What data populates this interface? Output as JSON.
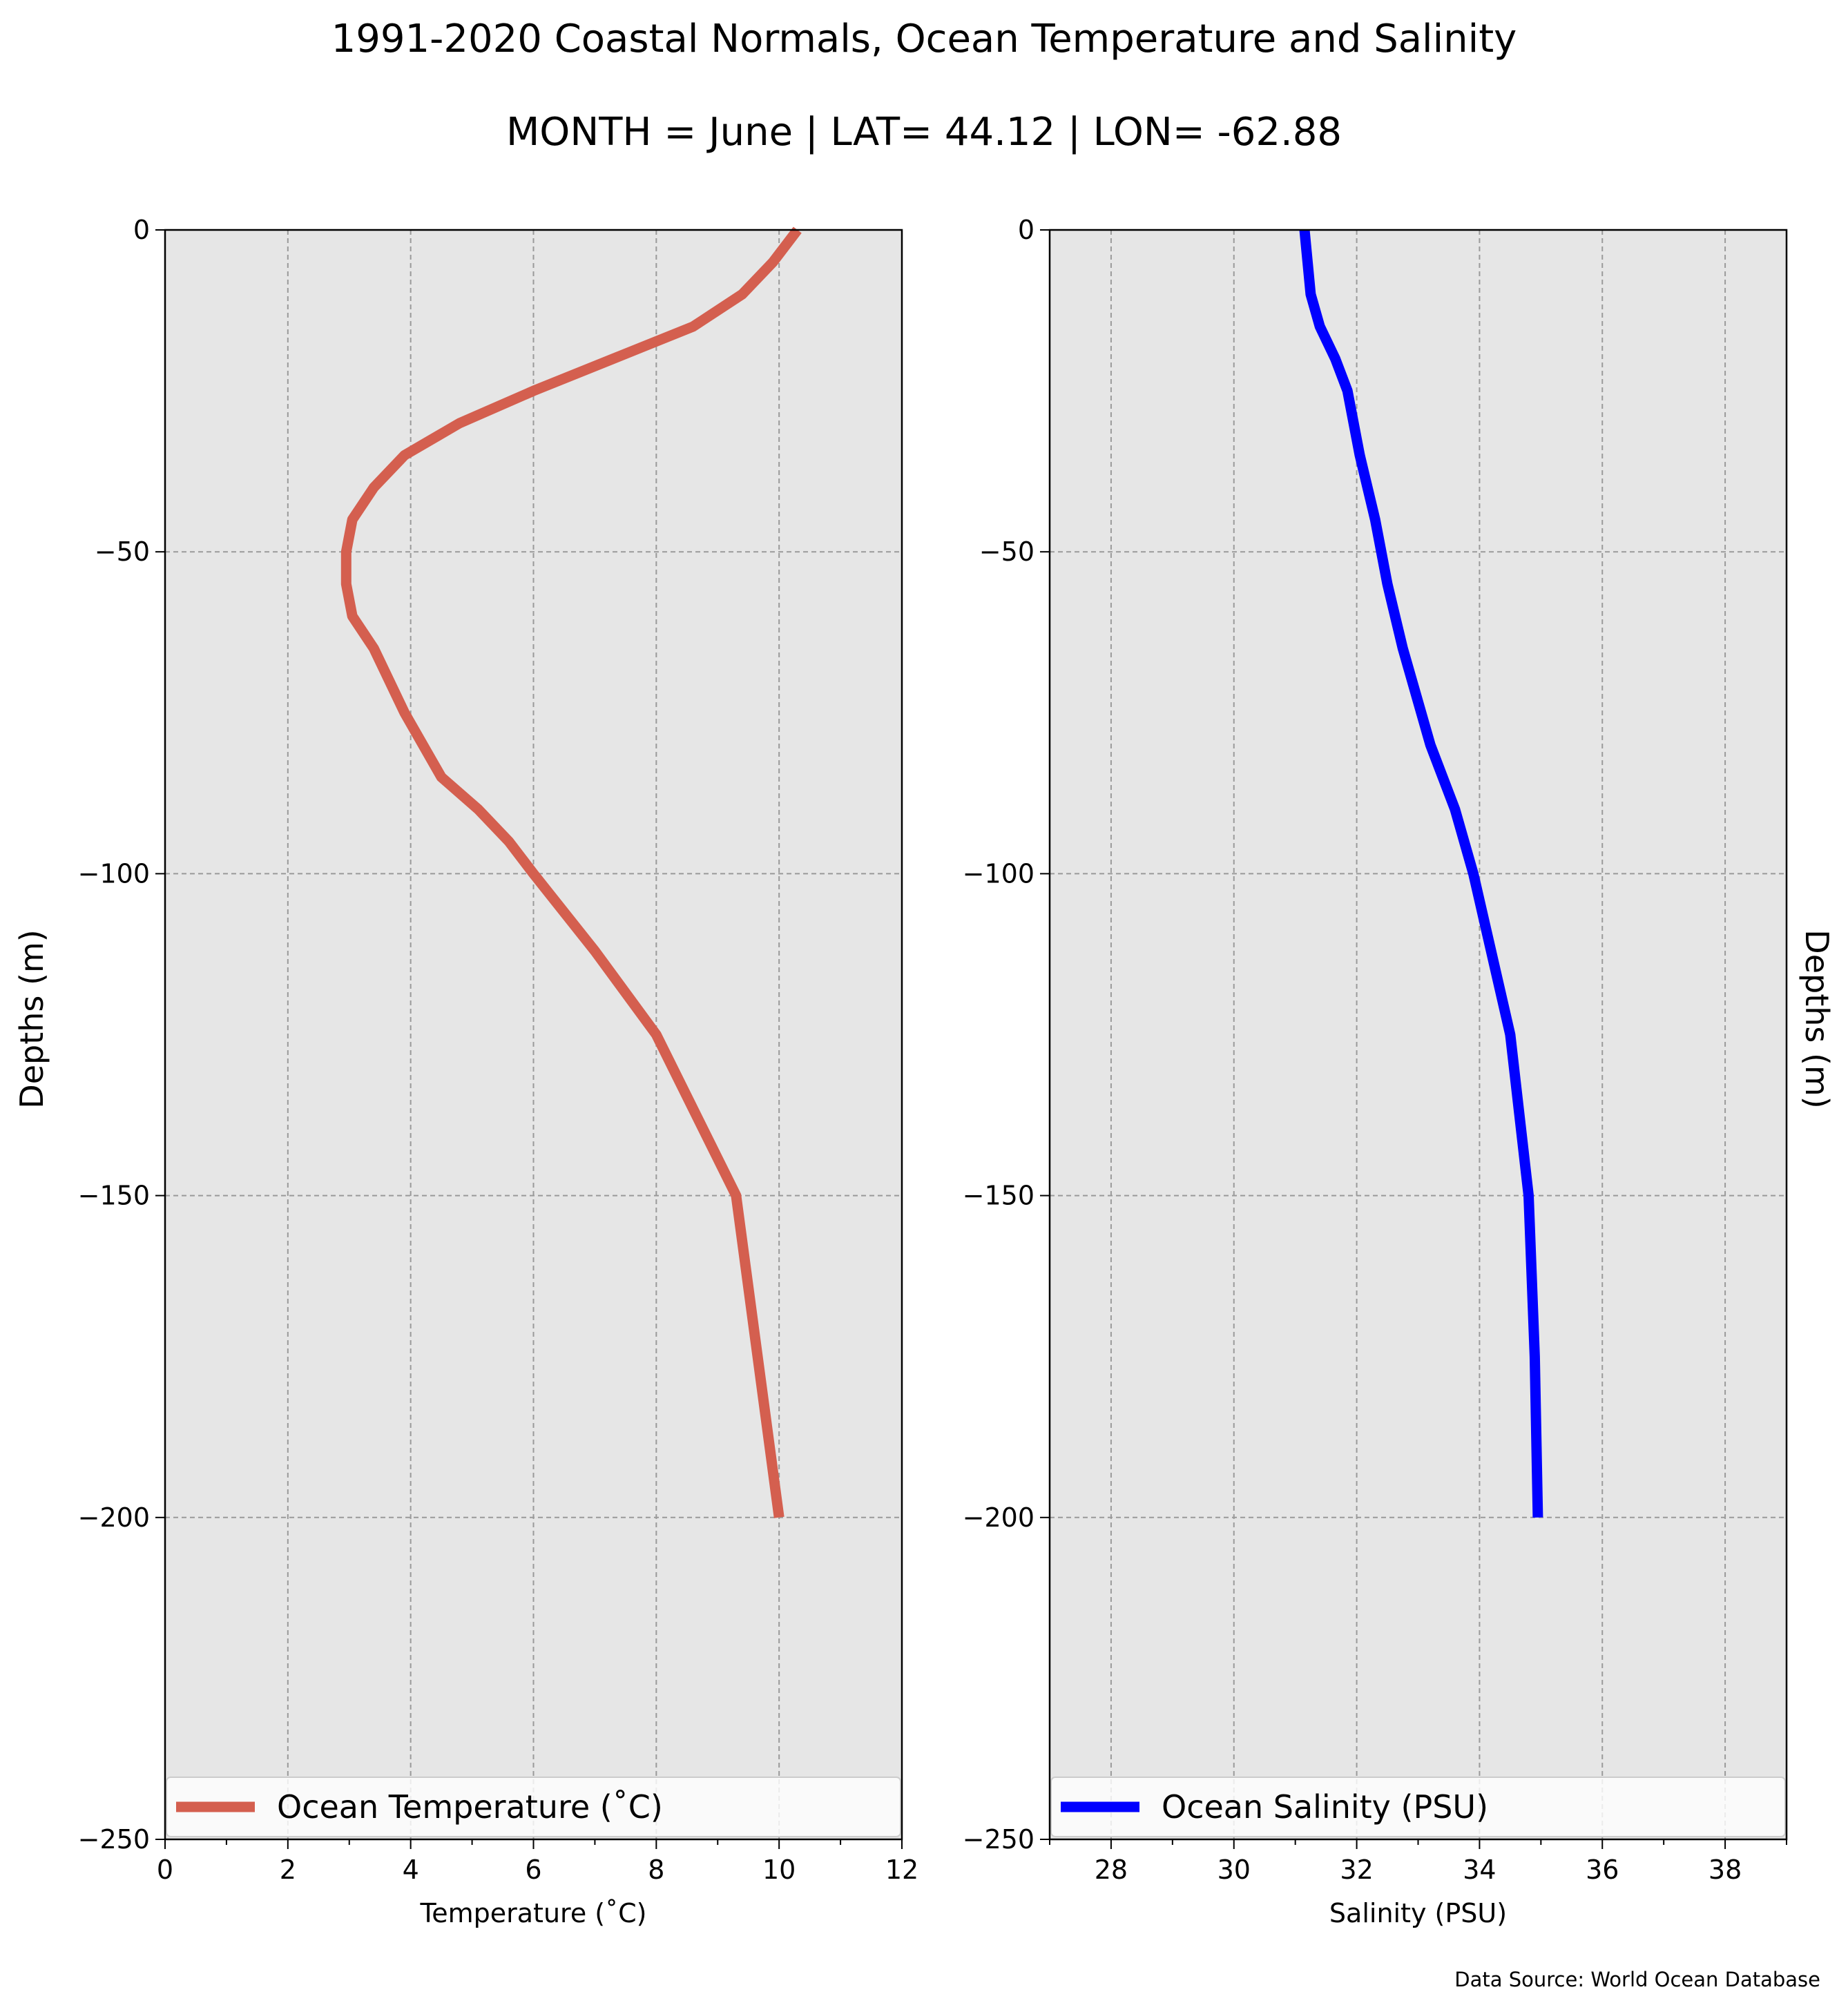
{
  "chart": {
    "title": "1991-2020 Coastal Normals, Ocean Temperature and Salinity",
    "subtitle": "MONTH = June | LAT= 44.12 | LON= -62.88",
    "source_note": "Data Source: World Ocean Database",
    "plot_background": "#e6e6e6"
  },
  "chart_data": [
    {
      "type": "line",
      "title": "",
      "xlabel": "Temperature ($^\\circ$C)",
      "xlabel_display": "Temperature (˚C)",
      "ylabel": "Depths (m)",
      "xlim": [
        0,
        12
      ],
      "ylim": [
        -250,
        0
      ],
      "xticks": [
        0,
        2,
        4,
        6,
        8,
        10,
        12
      ],
      "xtick_labels": [
        "0",
        "2",
        "4",
        "6",
        "8",
        "10",
        "12"
      ],
      "yticks": [
        0,
        -50,
        -100,
        -150,
        -200,
        -250
      ],
      "ytick_labels": [
        "0",
        "−50",
        "−100",
        "−150",
        "−200",
        "−250"
      ],
      "grid": true,
      "legend_placement": "bottom",
      "series": [
        {
          "name": "Ocean Temperature (˚C)",
          "color": "#d45f4f",
          "x": [
            10.3,
            9.9,
            9.4,
            8.6,
            7.3,
            6.0,
            4.8,
            3.9,
            3.4,
            3.05,
            2.95,
            2.95,
            3.05,
            3.4,
            3.9,
            4.5,
            5.1,
            5.6,
            6.0,
            7.0,
            8.0,
            9.3,
            10.0
          ],
          "y": [
            0,
            -5,
            -10,
            -15,
            -20,
            -25,
            -30,
            -35,
            -40,
            -45,
            -50,
            -55,
            -60,
            -65,
            -75,
            -85,
            -90,
            -95,
            -100,
            -112,
            -125,
            -150,
            -200
          ]
        }
      ]
    },
    {
      "type": "line",
      "title": "",
      "xlabel": "Salinity (PSU)",
      "ylabel": "Depths (m)",
      "xlim": [
        27,
        39
      ],
      "ylim": [
        -250,
        0
      ],
      "xticks": [
        28,
        30,
        32,
        34,
        36,
        38
      ],
      "xtick_labels": [
        "28",
        "30",
        "32",
        "34",
        "36",
        "38"
      ],
      "yticks": [
        0,
        -50,
        -100,
        -150,
        -200,
        -250
      ],
      "ytick_labels": [
        "0",
        "−50",
        "−100",
        "−150",
        "−200",
        "−250"
      ],
      "grid": true,
      "legend_placement": "bottom",
      "series": [
        {
          "name": "Ocean Salinity (PSU)",
          "color": "#0000ff",
          "x": [
            31.15,
            31.25,
            31.4,
            31.65,
            31.85,
            32.05,
            32.3,
            32.5,
            32.75,
            33.2,
            33.6,
            33.9,
            34.5,
            34.8,
            34.9,
            34.95
          ],
          "y": [
            0,
            -10,
            -15,
            -20,
            -25,
            -35,
            -45,
            -55,
            -65,
            -80,
            -90,
            -100,
            -125,
            -150,
            -175,
            -200
          ]
        }
      ]
    }
  ]
}
